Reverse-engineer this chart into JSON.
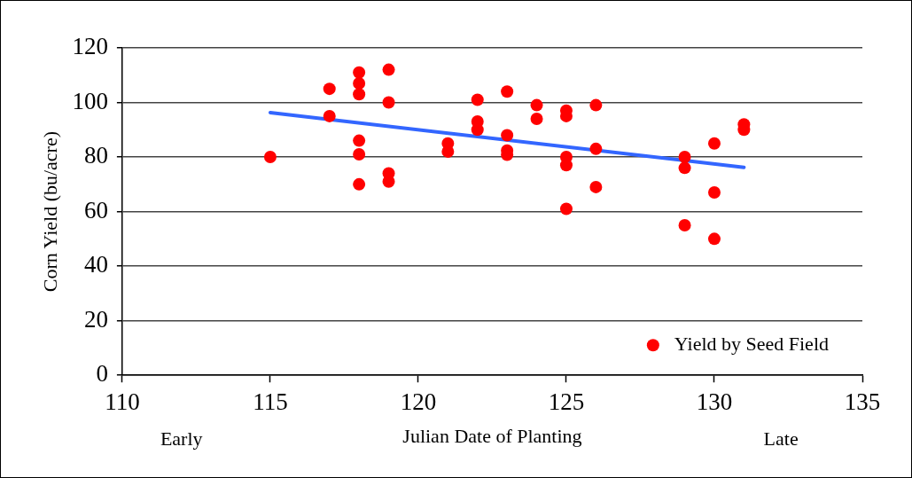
{
  "chart_data": {
    "type": "scatter",
    "xlabel": "Julian Date of Planting",
    "ylabel": "Corn Yield (bu/acre)",
    "xlim": [
      110,
      135
    ],
    "xticks": [
      110,
      115,
      120,
      125,
      130,
      135
    ],
    "ylim": [
      0,
      120
    ],
    "yticks": [
      0,
      20,
      40,
      60,
      80,
      100,
      120
    ],
    "grid": "y",
    "legend": "bottom right",
    "marker": "circle",
    "annotations": [
      "Early",
      "Late"
    ],
    "series": [
      {
        "name": "Yield by Seed Field",
        "color": "#ff0000",
        "x": [
          115,
          117,
          117,
          118,
          118,
          118,
          118,
          118,
          118,
          119,
          119,
          119,
          119,
          121,
          121,
          122,
          122,
          122,
          123,
          123,
          123,
          123,
          124,
          124,
          125,
          125,
          125,
          125,
          125,
          126,
          126,
          126,
          129,
          129,
          129,
          130,
          130,
          130,
          131,
          131
        ],
        "values": [
          80,
          105,
          95,
          111,
          107,
          103,
          86,
          81,
          70,
          112,
          100,
          74,
          71,
          85,
          82,
          101,
          93,
          90,
          104,
          88,
          82.4,
          80.8,
          99,
          94,
          97,
          95,
          80,
          77,
          61,
          99,
          83,
          69,
          80,
          76,
          55,
          85,
          67,
          50,
          92,
          90
        ]
      },
      {
        "type": "line",
        "color": "#3366ff",
        "marker": "none",
        "x": [
          115,
          131
        ],
        "values": [
          96.3,
          76.2
        ]
      }
    ]
  }
}
